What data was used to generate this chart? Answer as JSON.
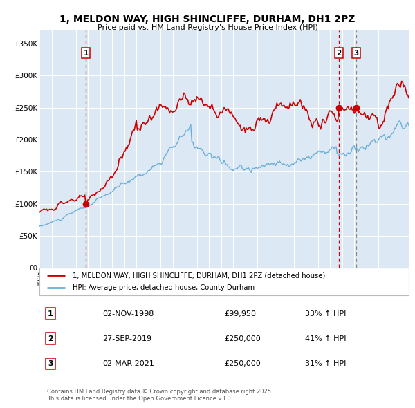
{
  "title_line1": "1, MELDON WAY, HIGH SHINCLIFFE, DURHAM, DH1 2PZ",
  "title_line2": "Price paid vs. HM Land Registry's House Price Index (HPI)",
  "bg_color": "#dce9f5",
  "red_line_label": "1, MELDON WAY, HIGH SHINCLIFFE, DURHAM, DH1 2PZ (detached house)",
  "blue_line_label": "HPI: Average price, detached house, County Durham",
  "transactions": [
    {
      "num": 1,
      "date": "02-NOV-1998",
      "price": 99950,
      "hpi_pct": "33% ↑ HPI",
      "year": 1998.83
    },
    {
      "num": 2,
      "date": "27-SEP-2019",
      "price": 250000,
      "hpi_pct": "41% ↑ HPI",
      "year": 2019.74
    },
    {
      "num": 3,
      "date": "02-MAR-2021",
      "price": 250000,
      "hpi_pct": "31% ↑ HPI",
      "year": 2021.17
    }
  ],
  "vline1_year": 1998.83,
  "vline2_year": 2019.74,
  "vline3_year": 2021.17,
  "ylim": [
    0,
    370000
  ],
  "xlim_start": 1995.0,
  "xlim_end": 2025.5,
  "yticks": [
    0,
    50000,
    100000,
    150000,
    200000,
    250000,
    300000,
    350000
  ],
  "ytick_labels": [
    "£0",
    "£50K",
    "£100K",
    "£150K",
    "£200K",
    "£250K",
    "£300K",
    "£350K"
  ],
  "footer_text": "Contains HM Land Registry data © Crown copyright and database right 2025.\nThis data is licensed under the Open Government Licence v3.0.",
  "red_color": "#cc0000",
  "blue_color": "#6baed6",
  "vline_red_color": "#cc0000",
  "vline_gray_color": "#888888",
  "title_fontsize": 10,
  "subtitle_fontsize": 8
}
